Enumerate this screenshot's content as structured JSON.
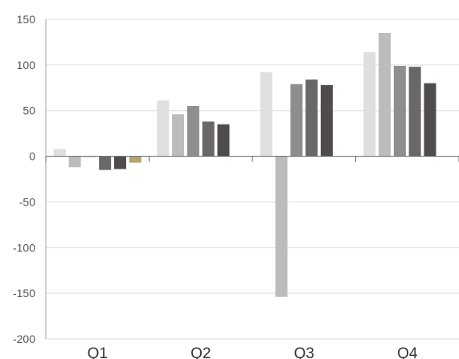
{
  "chart_data": {
    "type": "bar",
    "categories": [
      "Q1",
      "Q2",
      "Q3",
      "Q4"
    ],
    "series": [
      {
        "color": "#e0dfdf",
        "values": [
          8,
          61,
          92,
          114
        ]
      },
      {
        "color": "#bdbcbb",
        "values": [
          -12,
          46,
          -154,
          135
        ]
      },
      {
        "color": "#8f8e8d",
        "values": [
          0,
          55,
          79,
          99
        ]
      },
      {
        "color": "#6a6867",
        "values": [
          -15,
          38,
          84,
          98
        ]
      },
      {
        "color": "#4f4c4b",
        "values": [
          -14,
          35,
          78,
          80
        ]
      },
      {
        "color": "#b3a56a",
        "values": [
          -7,
          null,
          null,
          null
        ]
      }
    ],
    "ylim": [
      -200,
      150
    ],
    "yticks": [
      150,
      100,
      50,
      0,
      -50,
      -100,
      -150,
      -200
    ],
    "grid": true,
    "legend": "none"
  }
}
